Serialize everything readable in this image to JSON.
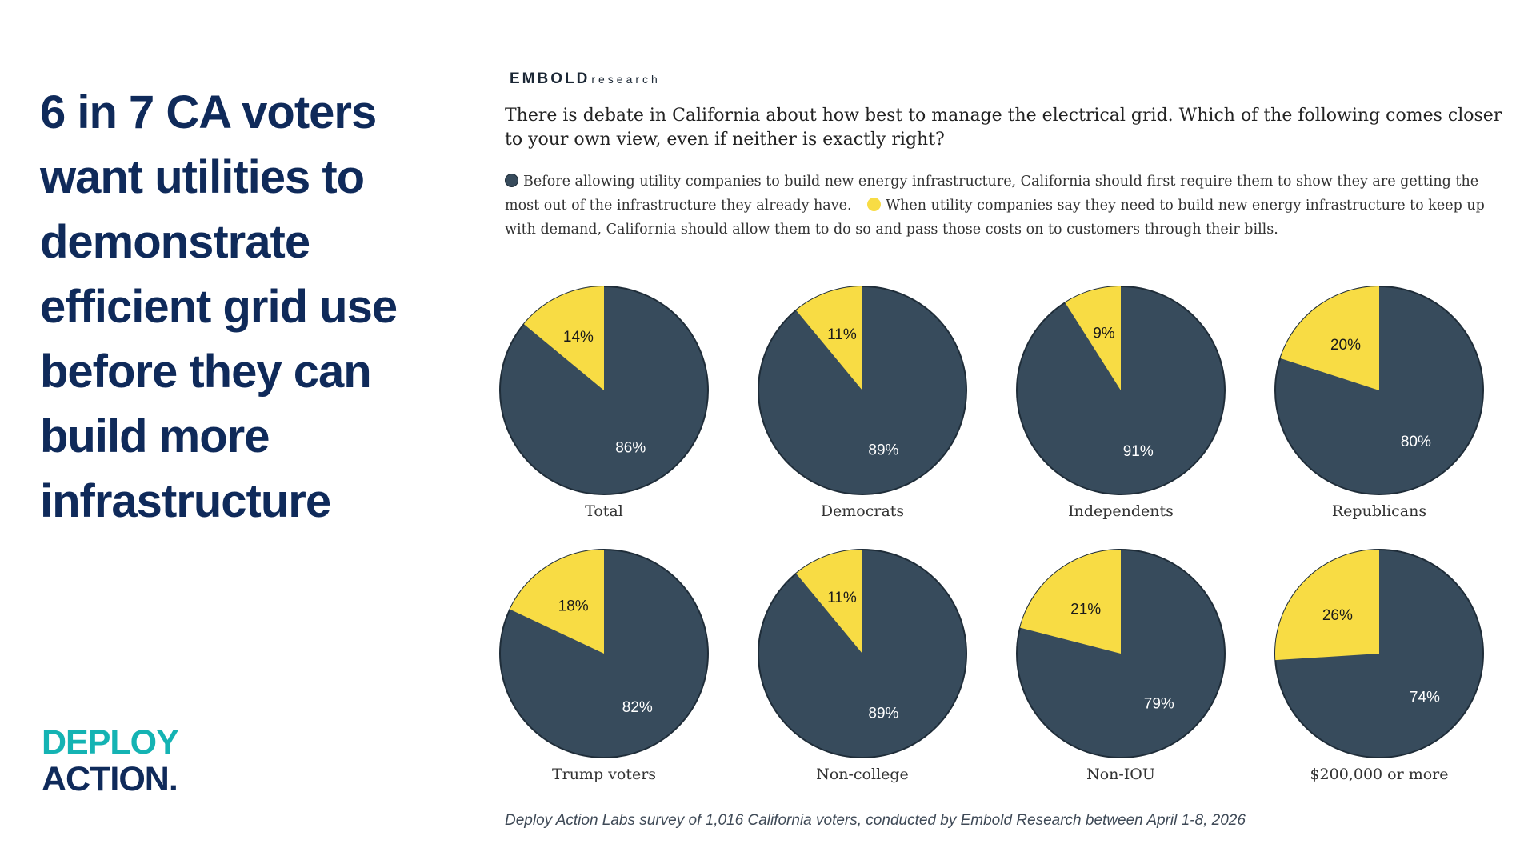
{
  "headline": "6 in 7 CA voters want utilities to demonstrate efficient grid use before they can build more infrastructure",
  "deploy_logo": {
    "line1": "DEPLOY",
    "line2": "ACTION."
  },
  "embold_logo": {
    "main": "EMBOLD",
    "sub": "research"
  },
  "question": "There is debate in California about how best to manage the electrical grid. Which of the following comes closer to your own view, even if neither is exactly right?",
  "legend": {
    "option_a": "Before allowing utility companies to build new energy infrastructure, California should first require them to show they are getting the most out of the infrastructure they already have.",
    "option_b": "When utility companies say they need to build new energy infrastructure to keep up with demand, California should allow them to do so and pass those costs on to customers through their bills."
  },
  "colors": {
    "dark": "#374b5c",
    "yellow": "#f8dc44",
    "headline": "#0f2a5a",
    "teal": "#14b3b3"
  },
  "footnote": "Deploy Action Labs survey of 1,016 California voters, conducted by Embold Research between April 1-8, 2026",
  "chart_data": {
    "type": "pie",
    "series_labels": [
      "Before allowing utility companies to build new energy infrastructure, California should first require them to show they are getting the most out of the infrastructure they already have.",
      "When utility companies say they need to build new energy infrastructure to keep up with demand, California should allow them to do so and pass those costs on to customers through their bills."
    ],
    "charts": [
      {
        "group": "Total",
        "values": [
          86,
          14
        ],
        "labels": [
          "86%",
          "14%"
        ]
      },
      {
        "group": "Democrats",
        "values": [
          89,
          11
        ],
        "labels": [
          "89%",
          "11%"
        ]
      },
      {
        "group": "Independents",
        "values": [
          91,
          9
        ],
        "labels": [
          "91%",
          "9%"
        ]
      },
      {
        "group": "Republicans",
        "values": [
          80,
          20
        ],
        "labels": [
          "80%",
          "20%"
        ]
      },
      {
        "group": "Trump voters",
        "values": [
          82,
          18
        ],
        "labels": [
          "82%",
          "18%"
        ]
      },
      {
        "group": "Non-college",
        "values": [
          89,
          11
        ],
        "labels": [
          "89%",
          "11%"
        ]
      },
      {
        "group": "Non-IOU",
        "values": [
          79,
          21
        ],
        "labels": [
          "79%",
          "21%"
        ]
      },
      {
        "group": "$200,000 or more",
        "values": [
          74,
          26
        ],
        "labels": [
          "74%",
          "26%"
        ]
      }
    ]
  }
}
